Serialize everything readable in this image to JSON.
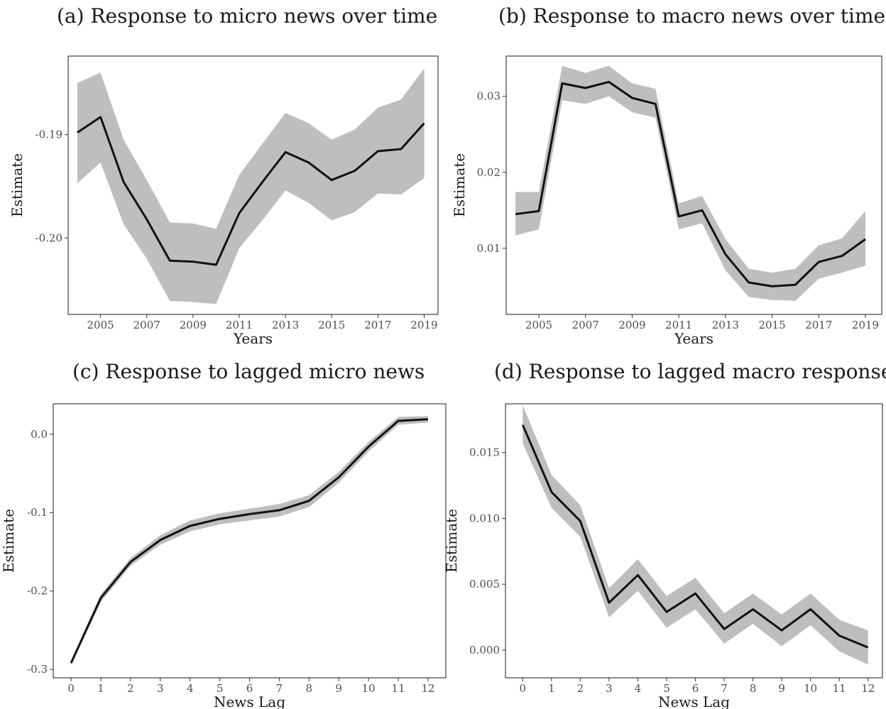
{
  "chart_data": [
    {
      "type": "line",
      "title": "(a) Response to micro news over time",
      "xlabel": "Years",
      "ylabel": "Estimate",
      "xlim": [
        2003.6,
        2019.6
      ],
      "ylim": [
        -0.2074,
        -0.1824
      ],
      "x_ticks": [
        2005,
        2007,
        2009,
        2011,
        2013,
        2015,
        2017,
        2019
      ],
      "x_tick_labels": [
        "2005",
        "2007",
        "2009",
        "2011",
        "2013",
        "2015",
        "2017",
        "2019"
      ],
      "y_ticks": [
        -0.19,
        -0.2
      ],
      "y_tick_labels": [
        "-0.19",
        "-0.20"
      ],
      "grid": false,
      "series": [
        {
          "x": [
            2004,
            2005,
            2006,
            2007,
            2008,
            2009,
            2010,
            2011,
            2012,
            2013,
            2014,
            2015,
            2016,
            2017,
            2018,
            2019
          ],
          "values": [
            -0.1898,
            -0.1883,
            -0.1946,
            -0.1982,
            -0.2022,
            -0.2023,
            -0.2026,
            -0.1976,
            -0.1946,
            -0.1917,
            -0.1927,
            -0.1944,
            -0.1935,
            -0.1916,
            -0.1914,
            -0.1889
          ],
          "lower": [
            -0.1947,
            -0.1927,
            -0.1987,
            -0.202,
            -0.2061,
            -0.2062,
            -0.2064,
            -0.201,
            -0.1983,
            -0.1954,
            -0.1966,
            -0.1983,
            -0.1975,
            -0.1957,
            -0.1958,
            -0.1942
          ],
          "upper": [
            -0.185,
            -0.184,
            -0.1905,
            -0.1944,
            -0.1985,
            -0.1986,
            -0.1991,
            -0.1939,
            -0.1909,
            -0.1879,
            -0.1889,
            -0.1905,
            -0.1895,
            -0.1874,
            -0.1866,
            -0.1836
          ]
        }
      ]
    },
    {
      "type": "line",
      "title": "(b) Response to macro news over time",
      "xlabel": "Years",
      "ylabel": "Estimate",
      "xlim": [
        2003.6,
        2019.7
      ],
      "ylim": [
        0.0013,
        0.0353
      ],
      "x_ticks": [
        2005,
        2007,
        2009,
        2011,
        2013,
        2015,
        2017,
        2019
      ],
      "x_tick_labels": [
        "2005",
        "2007",
        "2009",
        "2011",
        "2013",
        "2015",
        "2017",
        "2019"
      ],
      "y_ticks": [
        0.01,
        0.02,
        0.03
      ],
      "y_tick_labels": [
        "0.01",
        "0.02",
        "0.03"
      ],
      "grid": false,
      "series": [
        {
          "x": [
            2004,
            2005,
            2006,
            2007,
            2008,
            2009,
            2010,
            2011,
            2012,
            2013,
            2014,
            2015,
            2016,
            2017,
            2018,
            2019
          ],
          "values": [
            0.0145,
            0.0149,
            0.0317,
            0.0311,
            0.0319,
            0.0298,
            0.029,
            0.0142,
            0.015,
            0.0092,
            0.0055,
            0.005,
            0.0052,
            0.0082,
            0.009,
            0.0112
          ],
          "lower": [
            0.0117,
            0.0125,
            0.0295,
            0.029,
            0.03,
            0.0279,
            0.0272,
            0.0125,
            0.0133,
            0.0071,
            0.0036,
            0.0032,
            0.0031,
            0.006,
            0.0068,
            0.0077
          ],
          "upper": [
            0.0174,
            0.0174,
            0.034,
            0.0331,
            0.034,
            0.0317,
            0.031,
            0.0159,
            0.0169,
            0.0112,
            0.0073,
            0.0068,
            0.0073,
            0.0104,
            0.0113,
            0.0149
          ]
        }
      ]
    },
    {
      "type": "line",
      "title": "(c) Response to lagged micro news",
      "xlabel": "News Lag",
      "ylabel": "Estimate",
      "xlim": [
        -0.6,
        12.6
      ],
      "ylim": [
        -0.3107,
        0.0387
      ],
      "x_ticks": [
        0,
        1,
        2,
        3,
        4,
        5,
        6,
        7,
        8,
        9,
        10,
        11,
        12
      ],
      "x_tick_labels": [
        "0",
        "1",
        "2",
        "3",
        "4",
        "5",
        "6",
        "7",
        "8",
        "9",
        "10",
        "11",
        "12"
      ],
      "y_ticks": [
        0.0,
        -0.1,
        -0.2,
        -0.3
      ],
      "y_tick_labels": [
        "0.0",
        "-0.1",
        "-0.2",
        "-0.3"
      ],
      "grid": false,
      "series": [
        {
          "x": [
            0,
            1,
            2,
            3,
            4,
            5,
            6,
            7,
            8,
            9,
            10,
            11,
            12
          ],
          "values": [
            -0.292,
            -0.209,
            -0.163,
            -0.135,
            -0.117,
            -0.108,
            -0.102,
            -0.097,
            -0.085,
            -0.055,
            -0.016,
            0.017,
            0.019
          ],
          "lower": [
            -0.294,
            -0.214,
            -0.168,
            -0.141,
            -0.124,
            -0.115,
            -0.11,
            -0.105,
            -0.093,
            -0.062,
            -0.022,
            0.012,
            0.015
          ],
          "upper": [
            -0.289,
            -0.204,
            -0.158,
            -0.129,
            -0.11,
            -0.101,
            -0.095,
            -0.089,
            -0.078,
            -0.048,
            -0.01,
            0.022,
            0.023
          ]
        }
      ]
    },
    {
      "type": "line",
      "title": "(d) Response to lagged macro response",
      "xlabel": "News Lag",
      "ylabel": "Estimate",
      "xlim": [
        -0.6,
        12.5
      ],
      "ylim": [
        -0.0021,
        0.0187
      ],
      "x_ticks": [
        0,
        1,
        2,
        3,
        4,
        5,
        6,
        7,
        8,
        9,
        10,
        11,
        12
      ],
      "x_tick_labels": [
        "0",
        "1",
        "2",
        "3",
        "4",
        "5",
        "6",
        "7",
        "8",
        "9",
        "10",
        "11",
        "12"
      ],
      "y_ticks": [
        0.0,
        0.005,
        0.01,
        0.015
      ],
      "y_tick_labels": [
        "0.000",
        "0.005",
        "0.010",
        "0.015"
      ],
      "grid": false,
      "series": [
        {
          "x": [
            0,
            1,
            2,
            3,
            4,
            5,
            6,
            7,
            8,
            9,
            10,
            11,
            12
          ],
          "values": [
            0.0171,
            0.012,
            0.0098,
            0.0036,
            0.0057,
            0.0029,
            0.0043,
            0.0016,
            0.0031,
            0.0015,
            0.0031,
            0.0011,
            0.0002
          ],
          "lower": [
            0.0157,
            0.0108,
            0.0086,
            0.0025,
            0.0045,
            0.0017,
            0.0031,
            0.0005,
            0.002,
            0.0003,
            0.0019,
            -0.0001,
            -0.0011
          ],
          "upper": [
            0.0186,
            0.0133,
            0.011,
            0.0047,
            0.0069,
            0.0041,
            0.0055,
            0.0028,
            0.0043,
            0.0027,
            0.0043,
            0.0023,
            0.0015
          ]
        }
      ]
    }
  ]
}
